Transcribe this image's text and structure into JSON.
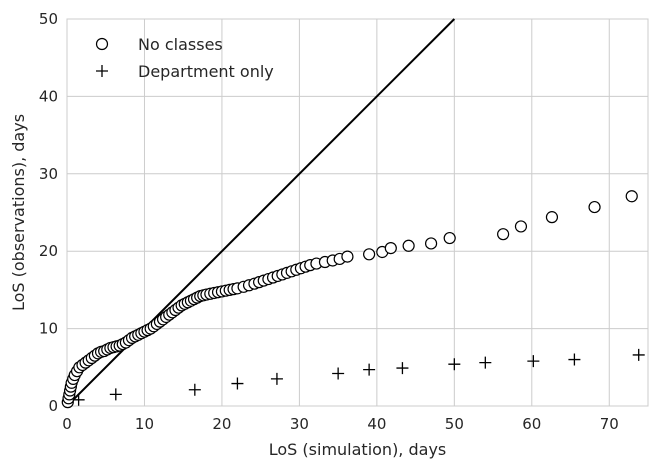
{
  "chart_data": {
    "type": "scatter",
    "xlabel": "LoS (simulation), days",
    "ylabel": "LoS (observations), days",
    "xlim": [
      0,
      75
    ],
    "ylim": [
      0,
      50
    ],
    "xticks": [
      0,
      10,
      20,
      30,
      40,
      50,
      60,
      70
    ],
    "yticks": [
      0,
      10,
      20,
      30,
      40,
      50
    ],
    "grid": true,
    "legend_position": "top-left",
    "reference_line": {
      "from": [
        0,
        0
      ],
      "to": [
        50,
        50
      ],
      "color": "#000000"
    },
    "series": [
      {
        "name": "No classes",
        "marker": "open-circle",
        "color": "#000000",
        "x": [
          0.1,
          0.2,
          0.3,
          0.4,
          0.5,
          0.6,
          0.8,
          1.0,
          1.3,
          1.6,
          2.0,
          2.4,
          2.8,
          3.2,
          3.6,
          4.0,
          4.4,
          4.8,
          5.2,
          5.6,
          6.0,
          6.4,
          6.8,
          7.2,
          7.6,
          8.0,
          8.4,
          8.8,
          9.2,
          9.6,
          10.0,
          10.4,
          10.8,
          11.2,
          11.6,
          12.0,
          12.4,
          12.8,
          13.2,
          13.6,
          14.0,
          14.4,
          14.8,
          15.2,
          15.6,
          16.0,
          16.4,
          16.8,
          17.2,
          17.6,
          18.0,
          18.5,
          19.0,
          19.5,
          20.0,
          20.5,
          21.0,
          21.5,
          22.0,
          22.8,
          23.5,
          24.2,
          24.8,
          25.4,
          26.0,
          26.6,
          27.2,
          27.8,
          28.4,
          29.0,
          29.6,
          30.2,
          30.8,
          31.4,
          32.2,
          33.3,
          34.3,
          35.2,
          36.2,
          39.0,
          40.7,
          41.8,
          44.1,
          47.0,
          49.4,
          56.3,
          58.6,
          62.6,
          68.1,
          72.9
        ],
        "y": [
          0.5,
          1.0,
          1.5,
          2.0,
          2.5,
          3.0,
          3.5,
          4.0,
          4.5,
          5.0,
          5.3,
          5.6,
          5.9,
          6.2,
          6.5,
          6.8,
          7.0,
          7.1,
          7.3,
          7.5,
          7.6,
          7.7,
          7.8,
          8.0,
          8.2,
          8.5,
          8.8,
          9.0,
          9.2,
          9.4,
          9.6,
          9.8,
          10.0,
          10.3,
          10.6,
          10.9,
          11.2,
          11.5,
          11.8,
          12.1,
          12.4,
          12.7,
          13.0,
          13.2,
          13.4,
          13.6,
          13.8,
          14.0,
          14.2,
          14.3,
          14.4,
          14.5,
          14.6,
          14.7,
          14.8,
          14.9,
          15.0,
          15.1,
          15.2,
          15.4,
          15.6,
          15.8,
          16.0,
          16.2,
          16.4,
          16.6,
          16.8,
          17.0,
          17.2,
          17.4,
          17.6,
          17.8,
          18.0,
          18.2,
          18.4,
          18.6,
          18.8,
          19.0,
          19.3,
          19.6,
          19.9,
          20.4,
          20.7,
          21.0,
          21.7,
          22.2,
          23.2,
          24.4,
          25.7,
          27.1
        ]
      },
      {
        "name": "Department only",
        "marker": "plus",
        "color": "#000000",
        "x": [
          1.5,
          6.3,
          16.5,
          22.0,
          27.1,
          35.0,
          39.0,
          43.3,
          50.0,
          54.0,
          60.2,
          65.5,
          73.8
        ],
        "y": [
          0.8,
          1.5,
          2.1,
          2.9,
          3.5,
          4.2,
          4.7,
          4.9,
          5.4,
          5.6,
          5.8,
          6.0,
          6.6
        ]
      }
    ]
  }
}
